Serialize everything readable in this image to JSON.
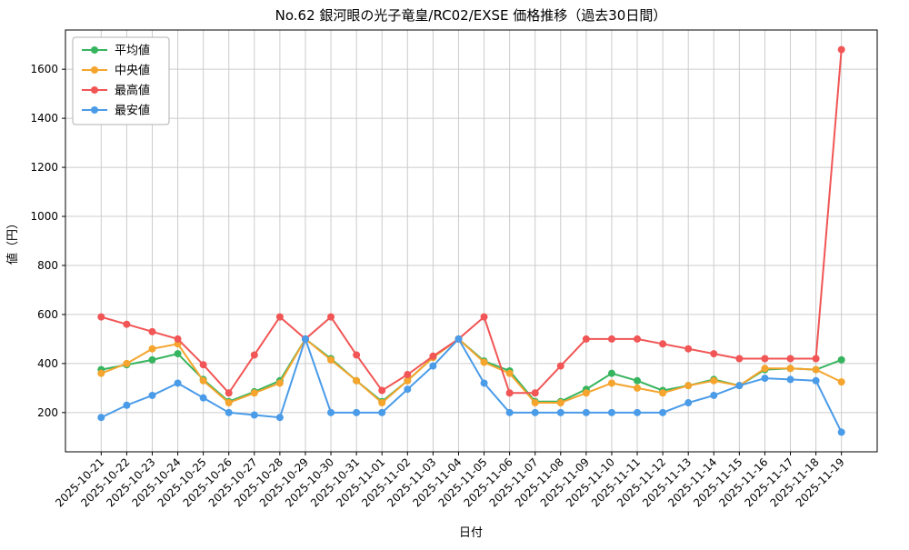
{
  "chart_data": {
    "type": "line",
    "title": "No.62 銀河眼の光子竜皇/RC02/EXSE 価格推移（過去30日間）",
    "xlabel": "日付",
    "ylabel": "値（円）",
    "ylim": [
      40,
      1760
    ],
    "yticks": [
      200,
      400,
      600,
      800,
      1000,
      1200,
      1400,
      1600
    ],
    "grid": true,
    "legend_position": "upper left",
    "categories": [
      "2025-10-21",
      "2025-10-22",
      "2025-10-23",
      "2025-10-24",
      "2025-10-25",
      "2025-10-26",
      "2025-10-27",
      "2025-10-28",
      "2025-10-29",
      "2025-10-30",
      "2025-10-31",
      "2025-11-01",
      "2025-11-02",
      "2025-11-03",
      "2025-11-04",
      "2025-11-05",
      "2025-11-06",
      "2025-11-07",
      "2025-11-08",
      "2025-11-09",
      "2025-11-10",
      "2025-11-11",
      "2025-11-12",
      "2025-11-13",
      "2025-11-14",
      "2025-11-15",
      "2025-11-16",
      "2025-11-17",
      "2025-11-18",
      "2025-11-19"
    ],
    "series": [
      {
        "name": "平均値",
        "color": "#36b45e",
        "values": [
          375,
          395,
          415,
          440,
          335,
          245,
          285,
          330,
          500,
          420,
          330,
          245,
          330,
          425,
          500,
          410,
          370,
          245,
          245,
          295,
          360,
          330,
          290,
          310,
          335,
          310,
          375,
          380,
          375,
          415
        ]
      },
      {
        "name": "中央値",
        "color": "#f5a42d",
        "values": [
          360,
          400,
          460,
          480,
          330,
          240,
          280,
          320,
          500,
          415,
          330,
          240,
          330,
          425,
          500,
          405,
          360,
          240,
          240,
          280,
          320,
          300,
          280,
          310,
          330,
          310,
          380,
          380,
          375,
          325
        ]
      },
      {
        "name": "最高値",
        "color": "#f15555",
        "values": [
          590,
          560,
          530,
          500,
          395,
          280,
          435,
          590,
          500,
          590,
          435,
          290,
          355,
          430,
          500,
          590,
          280,
          280,
          390,
          500,
          500,
          500,
          480,
          460,
          440,
          420,
          420,
          420,
          420,
          1680
        ]
      },
      {
        "name": "最安値",
        "color": "#4a9be8",
        "values": [
          180,
          230,
          270,
          320,
          260,
          200,
          190,
          180,
          500,
          200,
          200,
          200,
          295,
          390,
          500,
          320,
          200,
          200,
          200,
          200,
          200,
          200,
          200,
          240,
          270,
          310,
          340,
          335,
          330,
          120
        ]
      }
    ]
  }
}
